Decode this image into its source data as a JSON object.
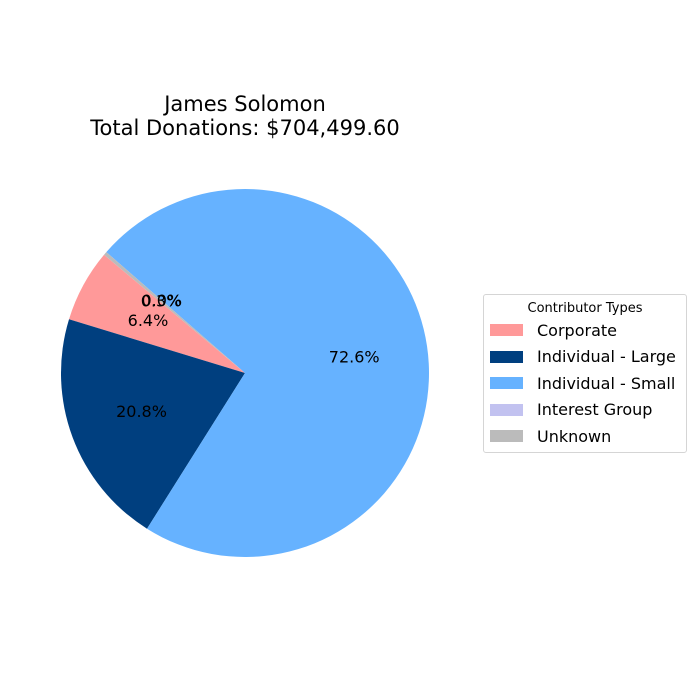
{
  "chart_data": {
    "type": "pie",
    "title_line1": "James Solomon",
    "title_line2": "Total Donations: $704,499.60",
    "legend_title": "Contributor Types",
    "legend_placement": "right",
    "start_angle_deg": 140,
    "counterclock": true,
    "slices": [
      {
        "name": "Corporate",
        "value": 6.4,
        "label": "6.4%",
        "color": "#ff9999"
      },
      {
        "name": "Individual - Large",
        "value": 20.8,
        "label": "20.8%",
        "color": "#003f7f"
      },
      {
        "name": "Individual - Small",
        "value": 72.6,
        "label": "72.6%",
        "color": "#66b2ff"
      },
      {
        "name": "Interest Group",
        "value": 0.0,
        "label": "0.0%",
        "color": "#c2c2f0"
      },
      {
        "name": "Unknown",
        "value": 0.3,
        "label": "0.3%",
        "color": "#bbbbbb"
      }
    ]
  }
}
